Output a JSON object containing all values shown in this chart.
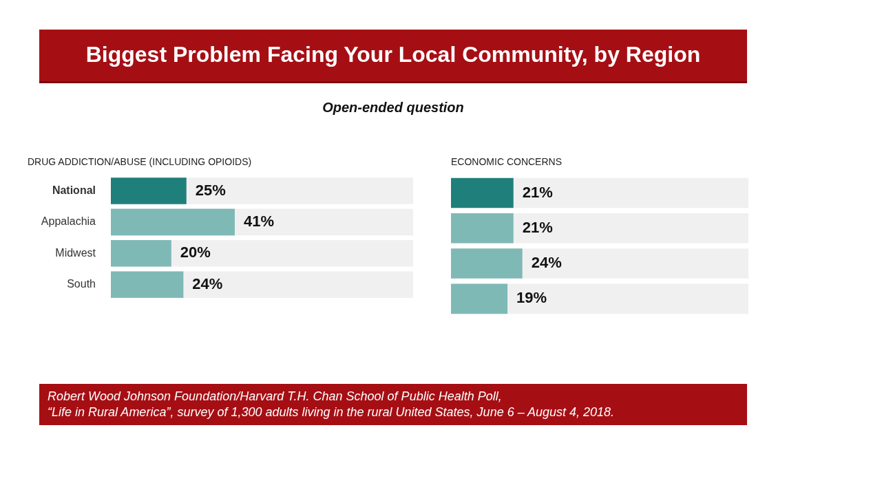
{
  "chart_data": [
    {
      "type": "other",
      "title": "Biggest Problem Facing Your Local Community, by Region",
      "subtitle": "Open-ended question",
      "annotations": [
        "Robert Wood Johnson Foundation/Harvard T.H. Chan School of Public Health Poll,",
        "“Life in Rural America”, survey of 1,300 adults living in the rural United States, June 6 – August 4, 2018."
      ]
    },
    {
      "type": "bar",
      "orientation": "horizontal",
      "title": "DRUG ADDICTION/ABUSE (INCLUDING OPIOIDS)",
      "categories": [
        "National",
        "Appalachia",
        "Midwest",
        "South"
      ],
      "values": [
        25,
        41,
        20,
        24
      ],
      "colors": [
        "#1f7f7b",
        "#7fb9b6",
        "#7fb9b6",
        "#7fb9b6"
      ],
      "value_labels": [
        "25%",
        "41%",
        "20%",
        "24%"
      ],
      "xlim": [
        0,
        100
      ],
      "tick_labels": "y"
    },
    {
      "type": "bar",
      "orientation": "horizontal",
      "title": "ECONOMIC CONCERNS",
      "categories": [
        null,
        null,
        null,
        null
      ],
      "values": [
        21,
        21,
        24,
        19
      ],
      "colors": [
        "#1f7f7b",
        "#7fb9b6",
        "#7fb9b6",
        "#7fb9b6"
      ],
      "value_labels": [
        "21%",
        "21%",
        "24%",
        "19%"
      ],
      "xlim": [
        0,
        100
      ],
      "tick_labels": false
    }
  ]
}
